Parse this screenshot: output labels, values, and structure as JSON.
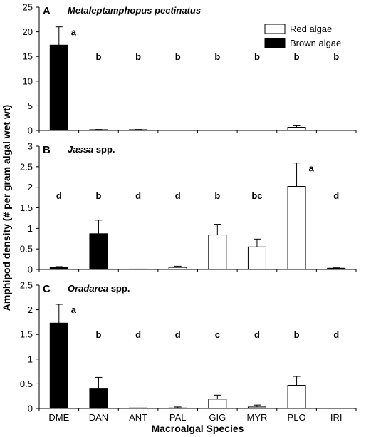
{
  "chart_data": {
    "type": "bar",
    "categories": [
      "DME",
      "DAN",
      "ANT",
      "PAL",
      "GIG",
      "MYR",
      "PLO",
      "IRI"
    ],
    "category_group": [
      "brown",
      "brown",
      "brown",
      "red",
      "red",
      "red",
      "red",
      "brown"
    ],
    "xlabel": "Macroalgal Species",
    "ylabel": "Amphipod density (# per gram algal wet wt)",
    "legend": {
      "position": "top-right",
      "entries": [
        {
          "label": "Red algae",
          "group": "red",
          "color": "#ffffff"
        },
        {
          "label": "Brown algae",
          "group": "brown",
          "color": "#000000"
        }
      ]
    },
    "colors": {
      "brown": "#000000",
      "red": "#ffffff",
      "edge": "#000000"
    },
    "grid": false,
    "panels": [
      {
        "letter": "A",
        "title_parts": [
          {
            "text": "Metaleptamphopus pectinatus",
            "italic": true
          }
        ],
        "ylim": [
          0,
          25
        ],
        "yticks": [
          0,
          5,
          10,
          15,
          20,
          25
        ],
        "ytick_labels": [
          "0",
          "5",
          "10",
          "15",
          "20",
          "25"
        ],
        "values": [
          17.3,
          0.15,
          0.15,
          0.05,
          0.03,
          0.03,
          0.65,
          0.03
        ],
        "errors": [
          3.7,
          0.05,
          0.05,
          0.0,
          0.0,
          0.0,
          0.3,
          0.0
        ],
        "significance": [
          "a",
          "b",
          "b",
          "b",
          "b",
          "b",
          "b",
          "b"
        ]
      },
      {
        "letter": "B",
        "title_parts": [
          {
            "text": "Jassa",
            "italic": true
          },
          {
            "text": " spp.",
            "italic": false
          }
        ],
        "ylim": [
          0,
          3
        ],
        "yticks": [
          0,
          0.5,
          1,
          1.5,
          2,
          2.5,
          3
        ],
        "ytick_labels": [
          "0",
          "0.5",
          "1",
          "1.5",
          "2",
          "2.5",
          "3"
        ],
        "values": [
          0.05,
          0.87,
          0.01,
          0.05,
          0.84,
          0.55,
          2.02,
          0.03
        ],
        "errors": [
          0.02,
          0.33,
          0.0,
          0.03,
          0.26,
          0.19,
          0.57,
          0.01
        ],
        "significance": [
          "d",
          "b",
          "d",
          "d",
          "b",
          "bc",
          "a",
          "d"
        ]
      },
      {
        "letter": "C",
        "title_parts": [
          {
            "text": "Oradarea",
            "italic": true
          },
          {
            "text": " spp.",
            "italic": false
          }
        ],
        "ylim": [
          0,
          2.5
        ],
        "yticks": [
          0,
          0.5,
          1,
          1.5,
          2,
          2.5
        ],
        "ytick_labels": [
          "0",
          "0.5",
          "1",
          "1.5",
          "2",
          "2.5"
        ],
        "values": [
          1.73,
          0.41,
          0.01,
          0.01,
          0.19,
          0.03,
          0.47,
          0.0
        ],
        "errors": [
          0.38,
          0.22,
          0.0,
          0.02,
          0.08,
          0.04,
          0.18,
          0.0
        ],
        "significance": [
          "a",
          "b",
          "d",
          "d",
          "c",
          "d",
          "b",
          "d"
        ]
      }
    ]
  }
}
